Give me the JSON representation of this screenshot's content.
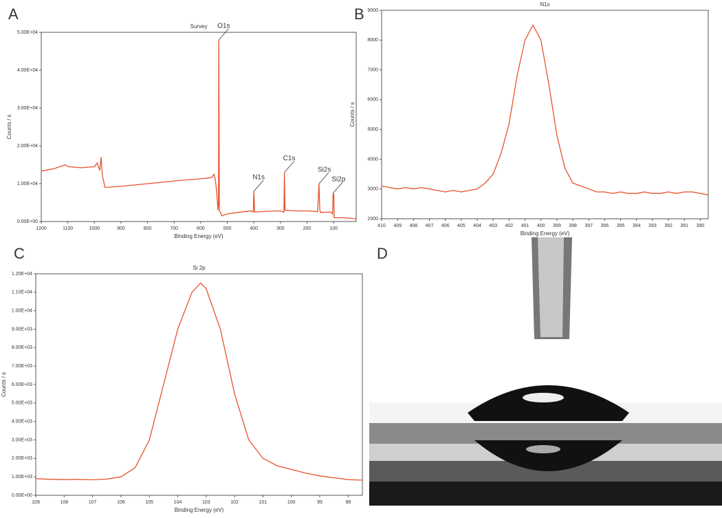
{
  "chart_data": [
    {
      "type": "line",
      "panel_label": "A",
      "title": "Survey",
      "xlabel": "Binding Energy (eV)",
      "ylabel": "Counts / s",
      "xlim": [
        1200,
        15
      ],
      "ylim": [
        0,
        50000
      ],
      "xticks": [
        1200,
        1100,
        1000,
        900,
        800,
        700,
        600,
        500,
        400,
        300,
        200,
        100
      ],
      "yticks": [
        {
          "value": 0,
          "label": "0.00E+00"
        },
        {
          "value": 10000,
          "label": "1.00E+04"
        },
        {
          "value": 20000,
          "label": "2.00E+04"
        },
        {
          "value": 30000,
          "label": "3.00E+04"
        },
        {
          "value": 40000,
          "label": "4.00E+04"
        },
        {
          "value": 50000,
          "label": "5.00E+04"
        }
      ],
      "series": [
        {
          "color": "#e8502a",
          "x": [
            1200,
            1150,
            1110,
            1100,
            1050,
            1000,
            990,
            980,
            975,
            970,
            960,
            900,
            800,
            700,
            600,
            560,
            550,
            545,
            540,
            535,
            533,
            532,
            530,
            520,
            500,
            450,
            410,
            402,
            400,
            397,
            350,
            300,
            287,
            285,
            283,
            250,
            200,
            160,
            155,
            152,
            150,
            110,
            104,
            102,
            99,
            98,
            60,
            30,
            15
          ],
          "values": [
            13300,
            14000,
            15000,
            14500,
            14200,
            14500,
            15500,
            13500,
            17000,
            12000,
            9000,
            9300,
            10000,
            10700,
            11300,
            11600,
            12500,
            11000,
            8000,
            3000,
            5000,
            48000,
            3000,
            1500,
            2000,
            2500,
            2800,
            2500,
            8000,
            2500,
            2700,
            2800,
            2500,
            13000,
            3000,
            2800,
            2800,
            2600,
            10000,
            3500,
            2400,
            2500,
            2000,
            7500,
            7000,
            1000,
            1000,
            800,
            700
          ]
        }
      ],
      "annotations": [
        {
          "text": "O1s",
          "x": 532,
          "y": 48000
        },
        {
          "text": "N1s",
          "x": 400,
          "y": 8000
        },
        {
          "text": "C1s",
          "x": 285,
          "y": 13000
        },
        {
          "text": "Si2s",
          "x": 155,
          "y": 10000
        },
        {
          "text": "Si2p",
          "x": 102,
          "y": 7500
        }
      ]
    },
    {
      "type": "line",
      "panel_label": "B",
      "title": "N1s",
      "xlabel": "Binding Energy (eV)",
      "ylabel": "Counts / s",
      "xlim": [
        410,
        389.5
      ],
      "ylim": [
        2000,
        9000
      ],
      "xticks": [
        410,
        409,
        408,
        407,
        406,
        405,
        404,
        403,
        402,
        401,
        400,
        399,
        398,
        397,
        396,
        395,
        394,
        393,
        392,
        391,
        390
      ],
      "yticks": [
        2000,
        3000,
        4000,
        5000,
        6000,
        7000,
        8000,
        9000
      ],
      "series": [
        {
          "color": "#e8502a",
          "x": [
            410,
            409.5,
            409,
            408.5,
            408,
            407.5,
            407,
            406.5,
            406,
            405.5,
            405,
            404.5,
            404,
            403.5,
            403,
            402.5,
            402,
            401.5,
            401,
            400.5,
            400,
            399.5,
            399,
            398.5,
            398,
            397.5,
            397,
            396.5,
            396,
            395.5,
            395,
            394.5,
            394,
            393.5,
            393,
            392.5,
            392,
            391.5,
            391,
            390.5,
            390,
            389.5
          ],
          "values": [
            3100,
            3050,
            3000,
            3050,
            3000,
            3050,
            3000,
            2950,
            2900,
            2950,
            2900,
            2950,
            3000,
            3200,
            3500,
            4200,
            5200,
            6800,
            8000,
            8500,
            8000,
            6500,
            4800,
            3700,
            3200,
            3100,
            3000,
            2900,
            2900,
            2850,
            2900,
            2850,
            2850,
            2900,
            2850,
            2850,
            2900,
            2850,
            2900,
            2900,
            2850,
            2800
          ]
        }
      ]
    },
    {
      "type": "line",
      "panel_label": "C",
      "title": "Si 2p",
      "xlabel": "Binding Energy (eV)",
      "ylabel": "Counts / s",
      "xlim": [
        109,
        97.5
      ],
      "ylim": [
        0,
        12000
      ],
      "xticks": [
        109,
        108,
        107,
        106,
        105,
        104,
        103,
        102,
        101,
        100,
        99,
        98
      ],
      "yticks": [
        {
          "value": 0,
          "label": "0.00E+00"
        },
        {
          "value": 1000,
          "label": "1.00E+03"
        },
        {
          "value": 2000,
          "label": "2.00E+03"
        },
        {
          "value": 3000,
          "label": "3.00E+03"
        },
        {
          "value": 4000,
          "label": "4.00E+03"
        },
        {
          "value": 5000,
          "label": "5.00E+03"
        },
        {
          "value": 6000,
          "label": "6.00E+03"
        },
        {
          "value": 7000,
          "label": "7.00E+03"
        },
        {
          "value": 8000,
          "label": "8.00E+03"
        },
        {
          "value": 9000,
          "label": "9.00E+03"
        },
        {
          "value": 10000,
          "label": "1.00E+04"
        },
        {
          "value": 11000,
          "label": "1.10E+04"
        },
        {
          "value": 12000,
          "label": "1.20E+04"
        }
      ],
      "series": [
        {
          "color": "#e8502a",
          "x": [
            109,
            108.5,
            108,
            107.5,
            107,
            106.5,
            106,
            105.5,
            105,
            104.5,
            104,
            103.5,
            103.2,
            103,
            102.5,
            102,
            101.5,
            101,
            100.5,
            100,
            99.5,
            99,
            98.5,
            98,
            97.5
          ],
          "values": [
            900,
            870,
            850,
            860,
            840,
            880,
            1000,
            1500,
            3000,
            6000,
            9000,
            11000,
            11500,
            11200,
            9000,
            5500,
            3000,
            2000,
            1600,
            1400,
            1200,
            1050,
            950,
            850,
            820
          ]
        }
      ]
    }
  ],
  "photo": {
    "panel_label": "D"
  }
}
